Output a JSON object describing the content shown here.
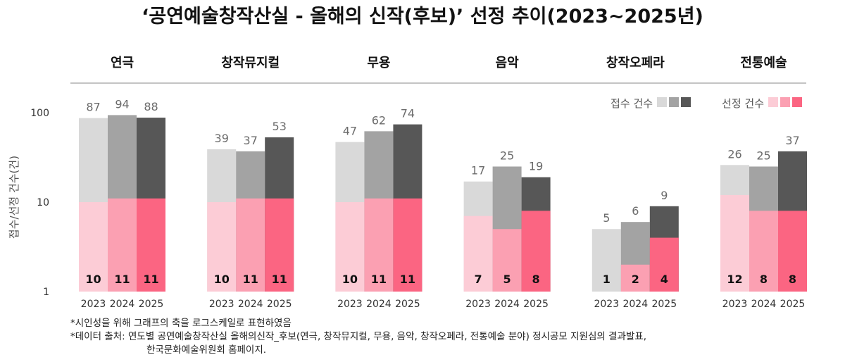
{
  "chart_data": {
    "type": "bar",
    "title": "‘공연예술창작산실 - 올해의 신작(후보)’ 선정 추이(2023~2025년)",
    "ylabel": "접수/선정 건수(건)",
    "yscale": "log",
    "ylim": [
      1,
      100
    ],
    "yticks": [
      "1",
      "10",
      "100"
    ],
    "years": [
      "2023",
      "2024",
      "2025"
    ],
    "categories": [
      "연극",
      "창작뮤지컬",
      "무용",
      "음악",
      "창작오페라",
      "전통예술"
    ],
    "series": [
      {
        "name": "접수 건수",
        "colors": [
          "#d9d9d9",
          "#a3a3a3",
          "#575757"
        ],
        "values": [
          [
            87,
            94,
            88
          ],
          [
            39,
            37,
            53
          ],
          [
            47,
            62,
            74
          ],
          [
            17,
            25,
            19
          ],
          [
            5,
            6,
            9
          ],
          [
            26,
            25,
            37
          ]
        ]
      },
      {
        "name": "선정 건수",
        "colors": [
          "#fcccd6",
          "#fba0b2",
          "#fb6582"
        ],
        "values": [
          [
            10,
            11,
            11
          ],
          [
            10,
            11,
            11
          ],
          [
            10,
            11,
            11
          ],
          [
            7,
            5,
            8
          ],
          [
            1,
            2,
            4
          ],
          [
            12,
            8,
            8
          ]
        ]
      }
    ],
    "legend_position": "top-right",
    "grid": false
  },
  "notes": {
    "line1": "*시인성을 위해 그래프의 축을 로그스케일로 표현하였음",
    "line2": "*데이터 출처: 연도별 공연예술창작산실 올해의신작_후보(연극, 창작뮤지컬, 무용, 음악, 창작오페라, 전통예술 분야) 정시공모 지원심의 결과발표,",
    "line3": "한국문화예술위원회 홈페이지."
  }
}
